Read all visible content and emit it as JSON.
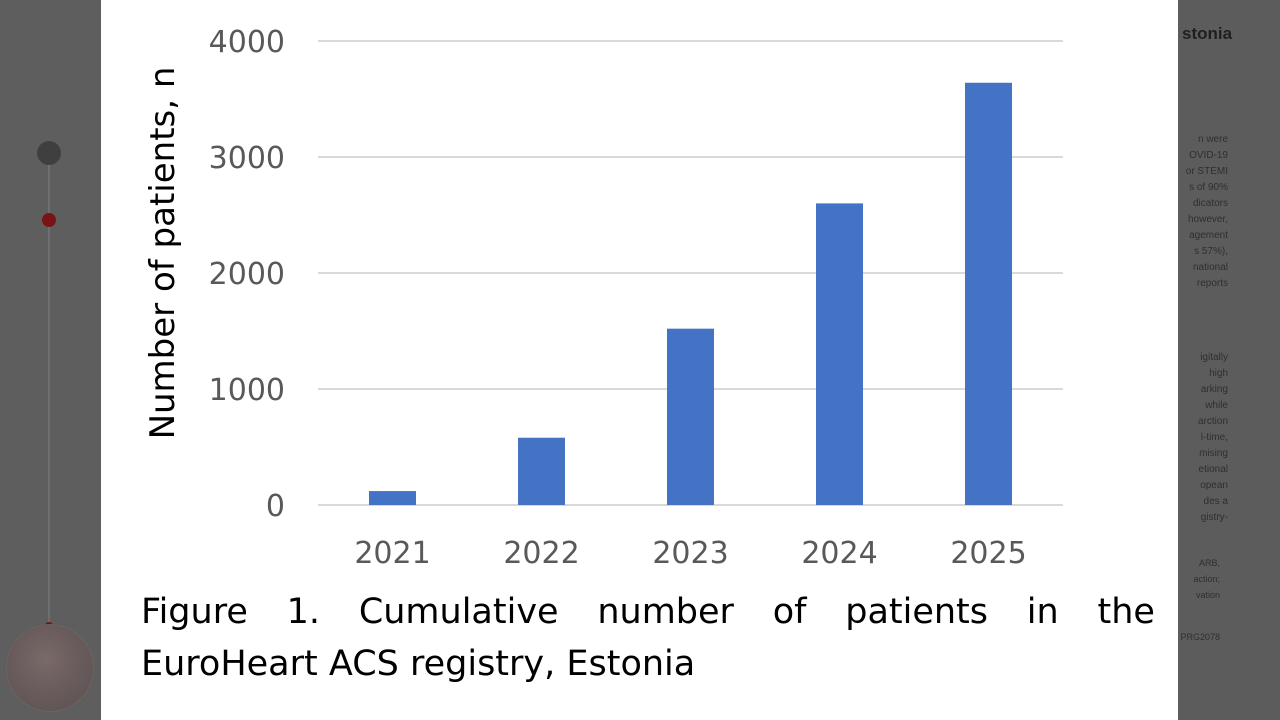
{
  "caption": {
    "line1_words": [
      "Figure",
      "1.",
      "Cumulative",
      "number",
      "of",
      "patients",
      "in",
      "the"
    ],
    "line2": "EuroHeart ACS registry, Estonia"
  },
  "background_doc": {
    "heading": "stonia",
    "lines": [
      "n were",
      "OVID-19",
      "or STEMI",
      "s of 90%",
      "dicators",
      "however,",
      "agement",
      "s 57%),",
      "national",
      "reports",
      "igitally",
      "high",
      "arking",
      "while",
      "arction",
      "l-time,",
      "mising",
      "etional",
      "opean",
      "des a",
      "gistry-",
      "ARB,",
      "action;",
      "vation",
      "PRG2078"
    ]
  },
  "colors": {
    "bar": "#4472c4",
    "grid": "#d9d9d9",
    "axis_text": "#595959"
  },
  "chart_data": {
    "type": "bar",
    "categories": [
      "2021",
      "2022",
      "2023",
      "2024",
      "2025"
    ],
    "values": [
      120,
      580,
      1520,
      2600,
      3640
    ],
    "title": "",
    "xlabel": "",
    "ylabel": "Number of patients, n",
    "ylim": [
      0,
      4000
    ],
    "yticks": [
      0,
      1000,
      2000,
      3000,
      4000
    ],
    "grid": true,
    "legend": "none"
  }
}
